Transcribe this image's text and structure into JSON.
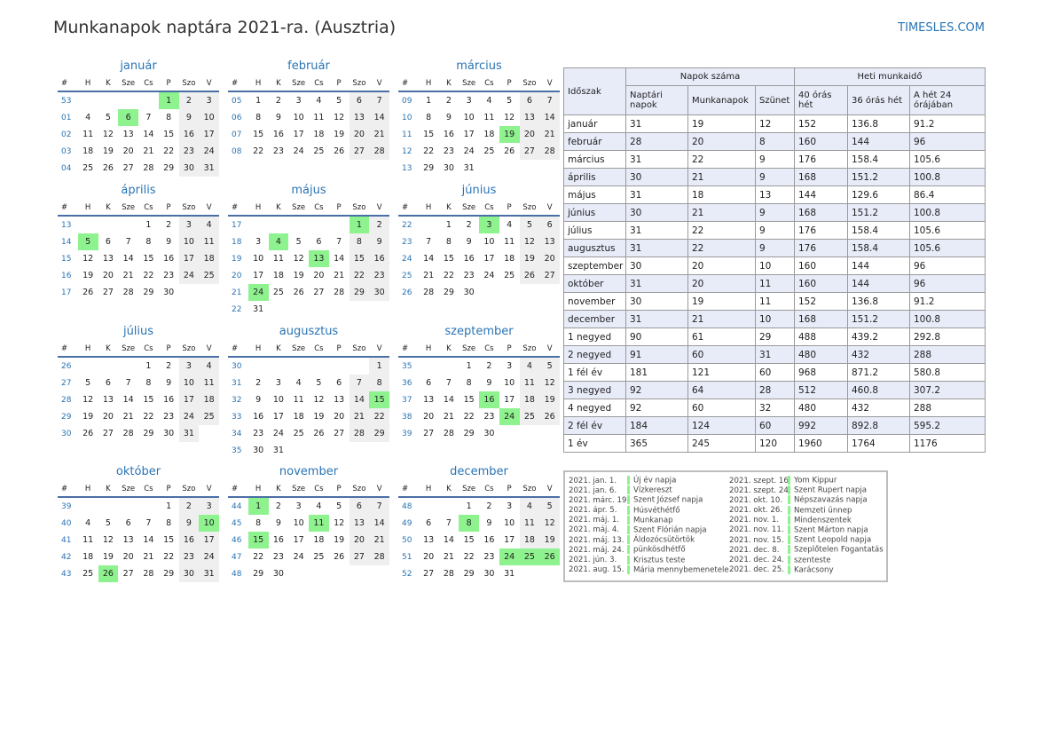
{
  "title": "Munkanapok naptára 2021-ra. (Ausztria)",
  "site": "TIMESLES.COM",
  "colors": {
    "holiday": "#8ef28e",
    "weekend": "#efefef",
    "accent": "#2a74b4",
    "table_header": "#e8ecf9"
  },
  "weekday_headers": [
    "#",
    "H",
    "K",
    "Sze",
    "Cs",
    "P",
    "Szo",
    "V"
  ],
  "months": [
    {
      "name": "január",
      "weeks": [
        [
          "53",
          "",
          "",
          "",
          "",
          "1",
          "2",
          "3"
        ],
        [
          "01",
          "4",
          "5",
          "6",
          "7",
          "8",
          "9",
          "10"
        ],
        [
          "02",
          "11",
          "12",
          "13",
          "14",
          "15",
          "16",
          "17"
        ],
        [
          "03",
          "18",
          "19",
          "20",
          "21",
          "22",
          "23",
          "24"
        ],
        [
          "04",
          "25",
          "26",
          "27",
          "28",
          "29",
          "30",
          "31"
        ]
      ],
      "holidays": [
        "1",
        "6"
      ]
    },
    {
      "name": "február",
      "weeks": [
        [
          "05",
          "1",
          "2",
          "3",
          "4",
          "5",
          "6",
          "7"
        ],
        [
          "06",
          "8",
          "9",
          "10",
          "11",
          "12",
          "13",
          "14"
        ],
        [
          "07",
          "15",
          "16",
          "17",
          "18",
          "19",
          "20",
          "21"
        ],
        [
          "08",
          "22",
          "23",
          "24",
          "25",
          "26",
          "27",
          "28"
        ]
      ],
      "holidays": []
    },
    {
      "name": "március",
      "weeks": [
        [
          "09",
          "1",
          "2",
          "3",
          "4",
          "5",
          "6",
          "7"
        ],
        [
          "10",
          "8",
          "9",
          "10",
          "11",
          "12",
          "13",
          "14"
        ],
        [
          "11",
          "15",
          "16",
          "17",
          "18",
          "19",
          "20",
          "21"
        ],
        [
          "12",
          "22",
          "23",
          "24",
          "25",
          "26",
          "27",
          "28"
        ],
        [
          "13",
          "29",
          "30",
          "31",
          "",
          "",
          "",
          ""
        ]
      ],
      "holidays": [
        "19"
      ]
    },
    {
      "name": "április",
      "weeks": [
        [
          "13",
          "",
          "",
          "",
          "1",
          "2",
          "3",
          "4"
        ],
        [
          "14",
          "5",
          "6",
          "7",
          "8",
          "9",
          "10",
          "11"
        ],
        [
          "15",
          "12",
          "13",
          "14",
          "15",
          "16",
          "17",
          "18"
        ],
        [
          "16",
          "19",
          "20",
          "21",
          "22",
          "23",
          "24",
          "25"
        ],
        [
          "17",
          "26",
          "27",
          "28",
          "29",
          "30",
          "",
          ""
        ]
      ],
      "holidays": [
        "5"
      ]
    },
    {
      "name": "május",
      "weeks": [
        [
          "17",
          "",
          "",
          "",
          "",
          "",
          "1",
          "2"
        ],
        [
          "18",
          "3",
          "4",
          "5",
          "6",
          "7",
          "8",
          "9"
        ],
        [
          "19",
          "10",
          "11",
          "12",
          "13",
          "14",
          "15",
          "16"
        ],
        [
          "20",
          "17",
          "18",
          "19",
          "20",
          "21",
          "22",
          "23"
        ],
        [
          "21",
          "24",
          "25",
          "26",
          "27",
          "28",
          "29",
          "30"
        ],
        [
          "22",
          "31",
          "",
          "",
          "",
          "",
          "",
          ""
        ]
      ],
      "holidays": [
        "1",
        "4",
        "13",
        "24"
      ]
    },
    {
      "name": "június",
      "weeks": [
        [
          "22",
          "",
          "1",
          "2",
          "3",
          "4",
          "5",
          "6"
        ],
        [
          "23",
          "7",
          "8",
          "9",
          "10",
          "11",
          "12",
          "13"
        ],
        [
          "24",
          "14",
          "15",
          "16",
          "17",
          "18",
          "19",
          "20"
        ],
        [
          "25",
          "21",
          "22",
          "23",
          "24",
          "25",
          "26",
          "27"
        ],
        [
          "26",
          "28",
          "29",
          "30",
          "",
          "",
          "",
          ""
        ]
      ],
      "holidays": [
        "3"
      ]
    },
    {
      "name": "július",
      "weeks": [
        [
          "26",
          "",
          "",
          "",
          "1",
          "2",
          "3",
          "4"
        ],
        [
          "27",
          "5",
          "6",
          "7",
          "8",
          "9",
          "10",
          "11"
        ],
        [
          "28",
          "12",
          "13",
          "14",
          "15",
          "16",
          "17",
          "18"
        ],
        [
          "29",
          "19",
          "20",
          "21",
          "22",
          "23",
          "24",
          "25"
        ],
        [
          "30",
          "26",
          "27",
          "28",
          "29",
          "30",
          "31",
          ""
        ]
      ],
      "holidays": []
    },
    {
      "name": "augusztus",
      "weeks": [
        [
          "30",
          "",
          "",
          "",
          "",
          "",
          "",
          "1"
        ],
        [
          "31",
          "2",
          "3",
          "4",
          "5",
          "6",
          "7",
          "8"
        ],
        [
          "32",
          "9",
          "10",
          "11",
          "12",
          "13",
          "14",
          "15"
        ],
        [
          "33",
          "16",
          "17",
          "18",
          "19",
          "20",
          "21",
          "22"
        ],
        [
          "34",
          "23",
          "24",
          "25",
          "26",
          "27",
          "28",
          "29"
        ],
        [
          "35",
          "30",
          "31",
          "",
          "",
          "",
          "",
          ""
        ]
      ],
      "holidays": [
        "15"
      ]
    },
    {
      "name": "szeptember",
      "weeks": [
        [
          "35",
          "",
          "",
          "1",
          "2",
          "3",
          "4",
          "5"
        ],
        [
          "36",
          "6",
          "7",
          "8",
          "9",
          "10",
          "11",
          "12"
        ],
        [
          "37",
          "13",
          "14",
          "15",
          "16",
          "17",
          "18",
          "19"
        ],
        [
          "38",
          "20",
          "21",
          "22",
          "23",
          "24",
          "25",
          "26"
        ],
        [
          "39",
          "27",
          "28",
          "29",
          "30",
          "",
          "",
          ""
        ]
      ],
      "holidays": [
        "16",
        "24"
      ]
    },
    {
      "name": "október",
      "weeks": [
        [
          "39",
          "",
          "",
          "",
          "",
          "1",
          "2",
          "3"
        ],
        [
          "40",
          "4",
          "5",
          "6",
          "7",
          "8",
          "9",
          "10"
        ],
        [
          "41",
          "11",
          "12",
          "13",
          "14",
          "15",
          "16",
          "17"
        ],
        [
          "42",
          "18",
          "19",
          "20",
          "21",
          "22",
          "23",
          "24"
        ],
        [
          "43",
          "25",
          "26",
          "27",
          "28",
          "29",
          "30",
          "31"
        ]
      ],
      "holidays": [
        "10",
        "26"
      ]
    },
    {
      "name": "november",
      "weeks": [
        [
          "44",
          "1",
          "2",
          "3",
          "4",
          "5",
          "6",
          "7"
        ],
        [
          "45",
          "8",
          "9",
          "10",
          "11",
          "12",
          "13",
          "14"
        ],
        [
          "46",
          "15",
          "16",
          "17",
          "18",
          "19",
          "20",
          "21"
        ],
        [
          "47",
          "22",
          "23",
          "24",
          "25",
          "26",
          "27",
          "28"
        ],
        [
          "48",
          "29",
          "30",
          "",
          "",
          "",
          "",
          ""
        ]
      ],
      "holidays": [
        "1",
        "11",
        "15"
      ]
    },
    {
      "name": "december",
      "weeks": [
        [
          "48",
          "",
          "",
          "1",
          "2",
          "3",
          "4",
          "5"
        ],
        [
          "49",
          "6",
          "7",
          "8",
          "9",
          "10",
          "11",
          "12"
        ],
        [
          "50",
          "13",
          "14",
          "15",
          "16",
          "17",
          "18",
          "19"
        ],
        [
          "51",
          "20",
          "21",
          "22",
          "23",
          "24",
          "25",
          "26"
        ],
        [
          "52",
          "27",
          "28",
          "29",
          "30",
          "31",
          "",
          ""
        ]
      ],
      "holidays": [
        "8",
        "24",
        "25",
        "26"
      ]
    }
  ],
  "stats": {
    "col_period": "Időszak",
    "group_days": "Napok száma",
    "group_hours": "Heti munkaidő",
    "col_calendar": "Naptári napok",
    "col_work": "Munkanapok",
    "col_rest": "Szünet",
    "col_40": "40 órás hét",
    "col_36": "36 órás hét",
    "col_24": "A hét 24 órájában",
    "rows": [
      [
        "január",
        "31",
        "19",
        "12",
        "152",
        "136.8",
        "91.2"
      ],
      [
        "február",
        "28",
        "20",
        "8",
        "160",
        "144",
        "96"
      ],
      [
        "március",
        "31",
        "22",
        "9",
        "176",
        "158.4",
        "105.6"
      ],
      [
        "április",
        "30",
        "21",
        "9",
        "168",
        "151.2",
        "100.8"
      ],
      [
        "május",
        "31",
        "18",
        "13",
        "144",
        "129.6",
        "86.4"
      ],
      [
        "június",
        "30",
        "21",
        "9",
        "168",
        "151.2",
        "100.8"
      ],
      [
        "július",
        "31",
        "22",
        "9",
        "176",
        "158.4",
        "105.6"
      ],
      [
        "augusztus",
        "31",
        "22",
        "9",
        "176",
        "158.4",
        "105.6"
      ],
      [
        "szeptember",
        "30",
        "20",
        "10",
        "160",
        "144",
        "96"
      ],
      [
        "október",
        "31",
        "20",
        "11",
        "160",
        "144",
        "96"
      ],
      [
        "november",
        "30",
        "19",
        "11",
        "152",
        "136.8",
        "91.2"
      ],
      [
        "december",
        "31",
        "21",
        "10",
        "168",
        "151.2",
        "100.8"
      ],
      [
        "1 negyed",
        "90",
        "61",
        "29",
        "488",
        "439.2",
        "292.8"
      ],
      [
        "2 negyed",
        "91",
        "60",
        "31",
        "480",
        "432",
        "288"
      ],
      [
        "1 fél év",
        "181",
        "121",
        "60",
        "968",
        "871.2",
        "580.8"
      ],
      [
        "3 negyed",
        "92",
        "64",
        "28",
        "512",
        "460.8",
        "307.2"
      ],
      [
        "4 negyed",
        "92",
        "60",
        "32",
        "480",
        "432",
        "288"
      ],
      [
        "2 fél év",
        "184",
        "124",
        "60",
        "992",
        "892.8",
        "595.2"
      ],
      [
        "1 év",
        "365",
        "245",
        "120",
        "1960",
        "1764",
        "1176"
      ]
    ]
  },
  "holiday_list": [
    [
      [
        "2021. jan. 1.",
        "Új év napja"
      ],
      [
        "2021. jan. 6.",
        "Vízkereszt"
      ],
      [
        "2021. márc. 19.",
        "Szent József napja"
      ],
      [
        "2021. ápr. 5.",
        "Húsvéthétfő"
      ],
      [
        "2021. máj. 1.",
        "Munkanap"
      ],
      [
        "2021. máj. 4.",
        "Szent Flórián napja"
      ],
      [
        "2021. máj. 13.",
        "Áldozócsütörtök"
      ],
      [
        "2021. máj. 24.",
        "pünkösdhétfő"
      ],
      [
        "2021. jún. 3.",
        "Krisztus teste"
      ],
      [
        "2021. aug. 15.",
        "Mária mennybemenetele"
      ]
    ],
    [
      [
        "2021. szept. 16.",
        "Yom Kippur"
      ],
      [
        "2021. szept. 24.",
        "Szent Rupert napja"
      ],
      [
        "2021. okt. 10.",
        "Népszavazás napja"
      ],
      [
        "2021. okt. 26.",
        "Nemzeti ünnep"
      ],
      [
        "2021. nov. 1.",
        "Mindenszentek"
      ],
      [
        "2021. nov. 11.",
        "Szent Márton napja"
      ],
      [
        "2021. nov. 15.",
        "Szent Leopold napja"
      ],
      [
        "2021. dec. 8.",
        "Szeplőtelen Fogantatás"
      ],
      [
        "2021. dec. 24.",
        "szenteste"
      ],
      [
        "2021. dec. 25.",
        "Karácsony"
      ]
    ]
  ]
}
